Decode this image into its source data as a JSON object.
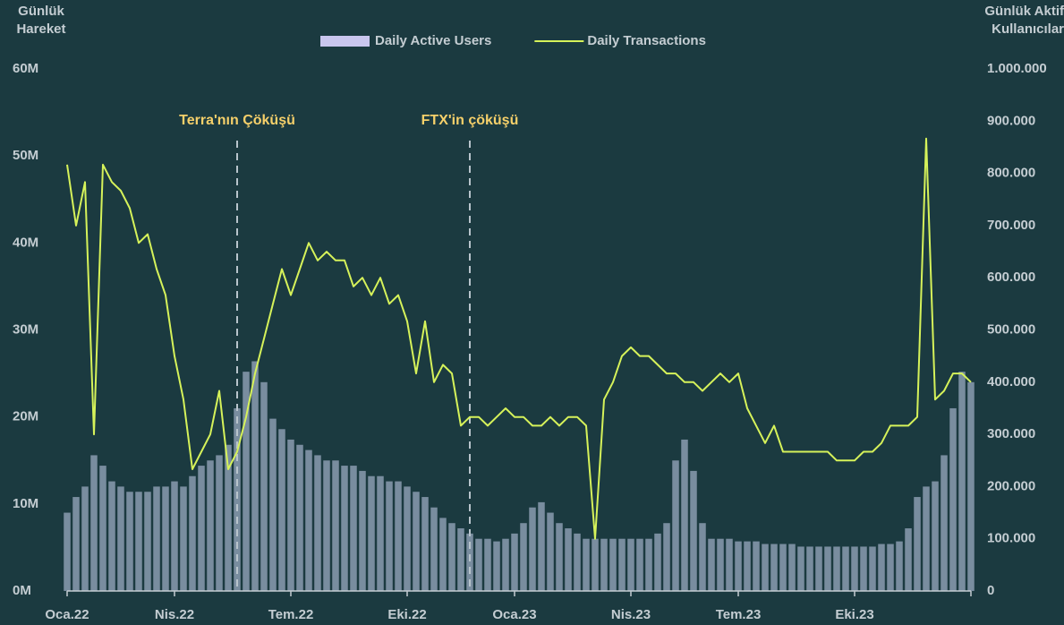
{
  "chart_data": {
    "type": "combo",
    "y_label_lines": [
      "Günlük",
      "Hareket"
    ],
    "y2_label_lines": [
      "Günlük Aktif",
      "Kullanıcılar"
    ],
    "categories": [
      "Oca.22",
      null,
      null,
      null,
      null,
      null,
      null,
      null,
      null,
      null,
      null,
      null,
      "Nis.22",
      null,
      null,
      null,
      null,
      null,
      null,
      null,
      null,
      null,
      null,
      null,
      null,
      "Tem.22",
      null,
      null,
      null,
      null,
      null,
      null,
      null,
      null,
      null,
      null,
      null,
      null,
      "Eki.22",
      null,
      null,
      null,
      null,
      null,
      null,
      null,
      null,
      null,
      null,
      null,
      "Oca.23",
      null,
      null,
      null,
      null,
      null,
      null,
      null,
      null,
      null,
      null,
      null,
      null,
      "Nis.23",
      null,
      null,
      null,
      null,
      null,
      null,
      null,
      null,
      null,
      null,
      null,
      "Tem.23",
      null,
      null,
      null,
      null,
      null,
      null,
      null,
      null,
      null,
      null,
      null,
      null,
      "Eki.23",
      null,
      null,
      null,
      null,
      null,
      null,
      null,
      null,
      null,
      null,
      null,
      null,
      null
    ],
    "series": [
      {
        "name": "Daily Active Users",
        "type": "bar",
        "axis": "y2",
        "color": "#8a9cb0",
        "legend_color": "#c9c6ee",
        "values": [
          150000,
          180000,
          200000,
          260000,
          240000,
          210000,
          200000,
          190000,
          190000,
          190000,
          200000,
          200000,
          210000,
          200000,
          220000,
          240000,
          250000,
          260000,
          280000,
          350000,
          420000,
          440000,
          400000,
          330000,
          310000,
          290000,
          280000,
          270000,
          260000,
          250000,
          250000,
          240000,
          240000,
          230000,
          220000,
          220000,
          210000,
          210000,
          200000,
          190000,
          180000,
          160000,
          140000,
          130000,
          120000,
          110000,
          100000,
          100000,
          95000,
          100000,
          110000,
          130000,
          160000,
          170000,
          150000,
          130000,
          120000,
          110000,
          100000,
          100000,
          100000,
          100000,
          100000,
          100000,
          100000,
          100000,
          110000,
          130000,
          250000,
          290000,
          230000,
          130000,
          100000,
          100000,
          100000,
          95000,
          95000,
          95000,
          90000,
          90000,
          90000,
          90000,
          85000,
          85000,
          85000,
          85000,
          85000,
          85000,
          85000,
          85000,
          85000,
          90000,
          90000,
          95000,
          120000,
          180000,
          200000,
          210000,
          260000,
          350000,
          420000,
          400000
        ]
      },
      {
        "name": "Daily Transactions",
        "type": "line",
        "axis": "y",
        "color": "#d6f25a",
        "values": [
          49,
          42,
          47,
          18,
          49,
          47,
          46,
          44,
          40,
          41,
          37,
          34,
          27,
          22,
          14,
          16,
          18,
          23,
          14,
          16,
          20,
          25,
          29,
          33,
          37,
          34,
          37,
          40,
          38,
          39,
          38,
          38,
          35,
          36,
          34,
          36,
          33,
          34,
          31,
          25,
          31,
          24,
          26,
          25,
          19,
          20,
          20,
          19,
          20,
          21,
          20,
          20,
          19,
          19,
          20,
          19,
          20,
          20,
          19,
          6,
          22,
          24,
          27,
          28,
          27,
          27,
          26,
          25,
          25,
          24,
          24,
          23,
          24,
          25,
          24,
          25,
          21,
          19,
          17,
          19,
          16,
          16,
          16,
          16,
          16,
          16,
          15,
          15,
          15,
          16,
          16,
          17,
          19,
          19,
          19,
          20,
          52,
          22,
          23,
          25,
          25,
          24
        ]
      }
    ],
    "ylim": [
      0,
      60
    ],
    "yticks": [
      {
        "value": 0,
        "label": "0M"
      },
      {
        "value": 10,
        "label": "10M"
      },
      {
        "value": 20,
        "label": "20M"
      },
      {
        "value": 30,
        "label": "30M"
      },
      {
        "value": 40,
        "label": "40M"
      },
      {
        "value": 50,
        "label": "50M"
      },
      {
        "value": 60,
        "label": "60M"
      }
    ],
    "y2lim": [
      0,
      1000000
    ],
    "y2ticks": [
      0,
      {
        "value": 100000,
        "label": "100.000"
      },
      {
        "value": 200000,
        "label": "200.000"
      },
      {
        "value": 300000,
        "label": "300.000"
      },
      {
        "value": 400000,
        "label": "400.000"
      },
      {
        "value": 500000,
        "label": "500.000"
      },
      {
        "value": 600000,
        "label": "600.000"
      },
      {
        "value": 700000,
        "label": "700.000"
      },
      {
        "value": 800000,
        "label": "800.000"
      },
      {
        "value": 900000,
        "label": "900.000"
      },
      {
        "value": 1000000,
        "label": "1.000.000"
      }
    ],
    "annotations": [
      {
        "text": "Terra'nın Çöküşü",
        "x": 19
      },
      {
        "text": "FTX'in çöküşü",
        "x": 45
      }
    ]
  }
}
